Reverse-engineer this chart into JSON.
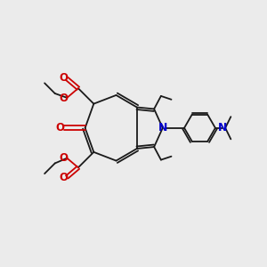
{
  "bg_color": "#ebebeb",
  "bond_color": "#1a1a1a",
  "red": "#cc0000",
  "blue": "#0000cc",
  "lw": 1.3,
  "figsize": [
    3.0,
    3.0
  ],
  "dpi": 100,
  "xlim": [
    -1.5,
    10.5
  ],
  "ylim": [
    0.5,
    10.5
  ]
}
